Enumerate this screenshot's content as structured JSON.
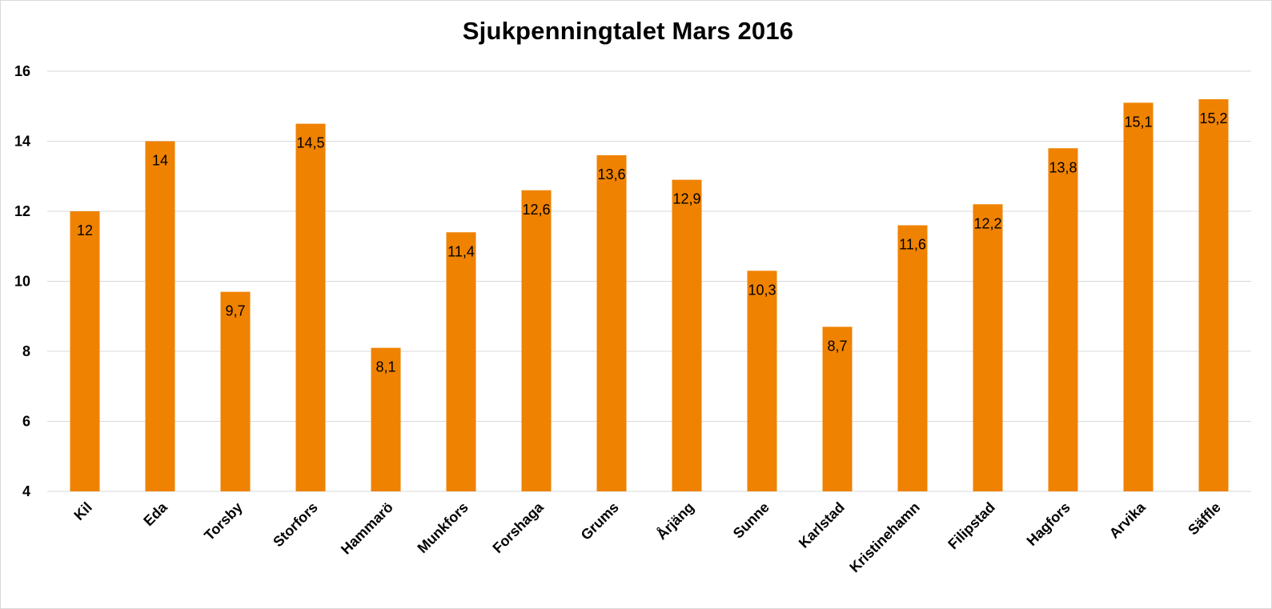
{
  "chart_data": {
    "type": "bar",
    "title": "Sjukpenningtalet Mars 2016",
    "xlabel": "",
    "ylabel": "",
    "ylim": [
      4,
      16
    ],
    "yticks": [
      "4",
      "6",
      "8",
      "10",
      "12",
      "14",
      "16"
    ],
    "grid": true,
    "legend": "none",
    "bar_color": "#ef8200",
    "categories": [
      "Kil",
      "Eda",
      "Torsby",
      "Storfors",
      "Hammarö",
      "Munkfors",
      "Forshaga",
      "Grums",
      "Årjäng",
      "Sunne",
      "Karlstad",
      "Kristinehamn",
      "Filipstad",
      "Hagfors",
      "Arvika",
      "Säffle"
    ],
    "values": [
      12,
      14,
      9.7,
      14.5,
      8.1,
      11.4,
      12.6,
      13.6,
      12.9,
      10.3,
      8.7,
      11.6,
      12.2,
      13.8,
      15.1,
      15.2
    ],
    "data_labels": [
      "12",
      "14",
      "9,7",
      "14,5",
      "8,1",
      "11,4",
      "12,6",
      "13,6",
      "12,9",
      "10,3",
      "8,7",
      "11,6",
      "12,2",
      "13,8",
      "15,1",
      "15,2"
    ]
  }
}
